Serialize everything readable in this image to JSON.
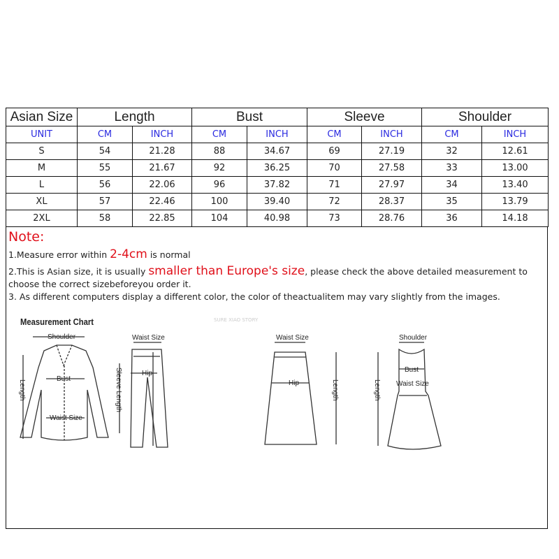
{
  "table": {
    "header": [
      "Asian Size",
      "Length",
      "Bust",
      "Sleeve",
      "Shoulder"
    ],
    "units": [
      "UNIT",
      "CM",
      "INCH",
      "CM",
      "INCH",
      "CM",
      "INCH",
      "CM",
      "INCH"
    ],
    "rows": [
      [
        "S",
        "54",
        "21.28",
        "88",
        "34.67",
        "69",
        "27.19",
        "32",
        "12.61"
      ],
      [
        "M",
        "55",
        "21.67",
        "92",
        "36.25",
        "70",
        "27.58",
        "33",
        "13.00"
      ],
      [
        "L",
        "56",
        "22.06",
        "96",
        "37.82",
        "71",
        "27.97",
        "34",
        "13.40"
      ],
      [
        "XL",
        "57",
        "22.46",
        "100",
        "39.40",
        "72",
        "28.37",
        "35",
        "13.79"
      ],
      [
        "2XL",
        "58",
        "22.85",
        "104",
        "40.98",
        "73",
        "28.76",
        "36",
        "14.18"
      ]
    ]
  },
  "notes": {
    "title": "Note:",
    "line1_a": "1.Measure error within ",
    "line1_b": "2-4cm",
    "line1_c": " is normal",
    "line2_a": "2.This is Asian size, it is usually ",
    "line2_b": "smaller than Europe's size",
    "line2_c": ", please check the above detailed measurement to",
    "line2_d": "choose the correct sizebeforeyou order it.",
    "line3": "3. As different computers display a different color, the color of theactualitem may vary slightly from the images."
  },
  "chart": {
    "title": "Measurement Chart",
    "watermark": "SURE XIAO STORY",
    "labels": {
      "shoulder": "Shoulder",
      "bust": "Bust",
      "waist": "Waist Size",
      "sleeve": "Sleeve Length",
      "length": "Length",
      "hip": "Hip"
    }
  },
  "colors": {
    "accent_red": "#e0101a",
    "unit_blue": "#2a2ae0"
  }
}
